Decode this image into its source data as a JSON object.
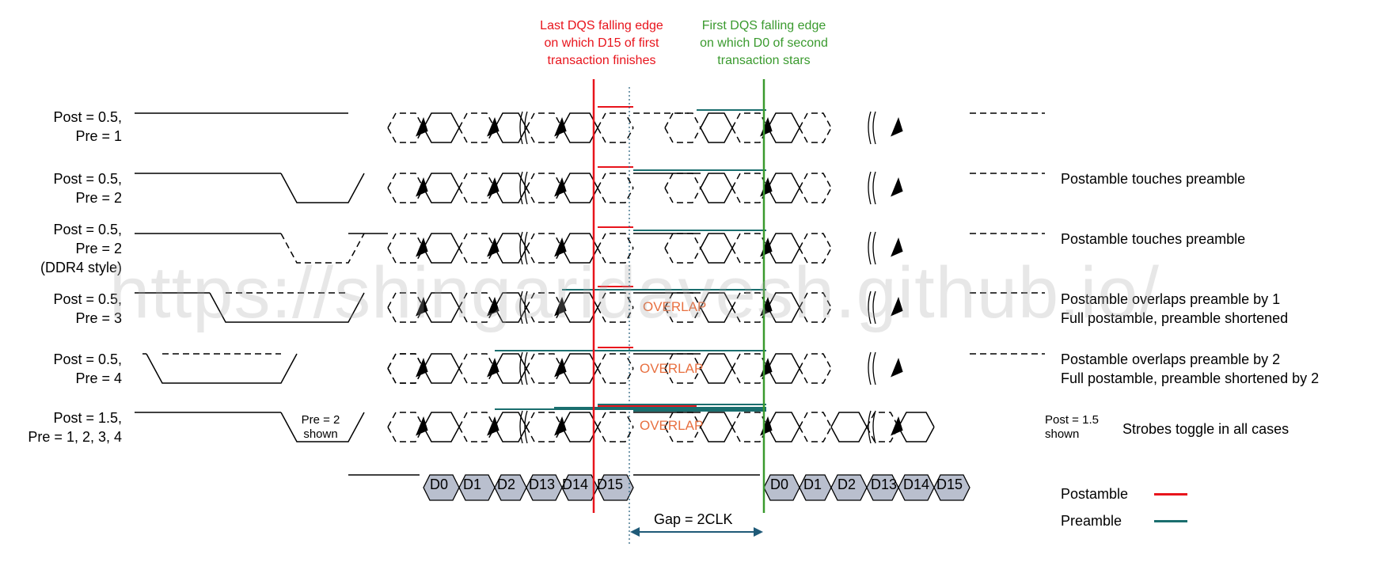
{
  "header": {
    "last_edge": [
      "Last DQS falling edge",
      "on which D15 of first",
      "transaction finishes"
    ],
    "first_edge": [
      "First DQS falling edge",
      "on which D0 of second",
      "transaction stars"
    ]
  },
  "rows": [
    {
      "label": [
        "Post = 0.5,",
        "Pre = 1"
      ],
      "note": []
    },
    {
      "label": [
        "Post = 0.5,",
        "Pre = 2"
      ],
      "note": [
        "Postamble touches preamble"
      ]
    },
    {
      "label": [
        "Post = 0.5,",
        "Pre = 2",
        "(DDR4 style)"
      ],
      "note": [
        "Postamble touches preamble"
      ]
    },
    {
      "label": [
        "Post = 0.5,",
        "Pre = 3"
      ],
      "note": [
        "Postamble overlaps preamble by 1",
        "Full postamble, preamble shortened"
      ]
    },
    {
      "label": [
        "Post = 0.5,",
        "Pre = 4"
      ],
      "note": [
        "Postamble overlaps preamble by 2",
        "Full postamble, preamble shortened by 2"
      ]
    },
    {
      "label": [
        "Post = 1.5,",
        "Pre = 1, 2, 3, 4"
      ],
      "note": [
        "Strobes toggle in all cases"
      ]
    }
  ],
  "overlap_text": "OVERLAP",
  "pre_shown": [
    "Pre = 2",
    "shown"
  ],
  "post_shown": [
    "Post = 1.5",
    "shown"
  ],
  "data_first": [
    "D0",
    "D1",
    "D2",
    "D13",
    "D14",
    "D15"
  ],
  "data_second": [
    "D0",
    "D1",
    "D2",
    "D13",
    "D14",
    "D15"
  ],
  "gap_label": "Gap = 2CLK",
  "legend": [
    {
      "label": "Postamble",
      "color": "#e8141c"
    },
    {
      "label": "Preamble",
      "color": "#1a6e6e"
    }
  ],
  "watermark": "https://shingaridavesh.github.io/",
  "colors": {
    "red": "#e8141c",
    "green": "#3a9a2e",
    "teal": "#1a6e6e",
    "gap_arrow": "#1f5a78",
    "overlap": "#e87040",
    "data_fill": "#b9bfce"
  }
}
